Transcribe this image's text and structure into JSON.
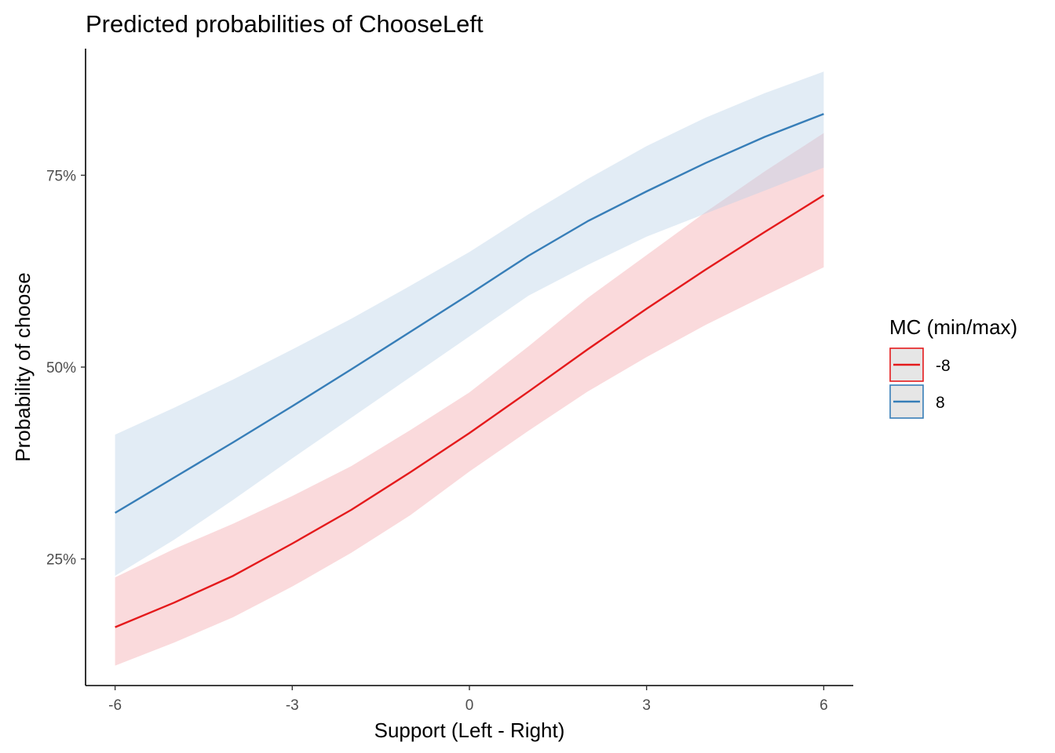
{
  "chart_data": {
    "type": "line",
    "title": "Predicted probabilities of ChooseLeft",
    "xlabel": "Support (Left - Right)",
    "ylabel": "Probability of choose",
    "xlim": [
      -6.5,
      6.5
    ],
    "ylim": [
      0.085,
      0.915
    ],
    "x_ticks": [
      -6,
      -3,
      0,
      3,
      6
    ],
    "x_tick_labels": [
      "-6",
      "-3",
      "0",
      "3",
      "6"
    ],
    "y_ticks": [
      0.25,
      0.5,
      0.75
    ],
    "y_tick_labels": [
      "25%",
      "50%",
      "75%"
    ],
    "grid": false,
    "legend": {
      "title": "MC (min/max)",
      "position": "right"
    },
    "x": [
      -6,
      -5,
      -4,
      -3,
      -2,
      -1,
      0,
      1,
      2,
      3,
      4,
      5,
      6
    ],
    "series": [
      {
        "name": "-8",
        "color": "#e41a1c",
        "band_color": "#f4a7ac",
        "values": [
          0.161,
          0.193,
          0.228,
          0.27,
          0.314,
          0.363,
          0.414,
          0.468,
          0.523,
          0.576,
          0.627,
          0.676,
          0.724
        ],
        "lower": [
          0.111,
          0.141,
          0.174,
          0.214,
          0.258,
          0.307,
          0.364,
          0.417,
          0.468,
          0.513,
          0.555,
          0.593,
          0.63
        ],
        "upper": [
          0.226,
          0.263,
          0.296,
          0.332,
          0.371,
          0.418,
          0.467,
          0.527,
          0.59,
          0.646,
          0.702,
          0.755,
          0.805
        ]
      },
      {
        "name": "8",
        "color": "#377eb8",
        "band_color": "#b9d1e8",
        "values": [
          0.31,
          0.356,
          0.402,
          0.449,
          0.497,
          0.546,
          0.595,
          0.645,
          0.69,
          0.729,
          0.766,
          0.8,
          0.83
        ],
        "lower": [
          0.228,
          0.275,
          0.327,
          0.381,
          0.434,
          0.487,
          0.54,
          0.593,
          0.633,
          0.67,
          0.7,
          0.73,
          0.76
        ],
        "upper": [
          0.412,
          0.447,
          0.484,
          0.523,
          0.563,
          0.606,
          0.65,
          0.699,
          0.745,
          0.788,
          0.825,
          0.857,
          0.885
        ]
      }
    ]
  }
}
